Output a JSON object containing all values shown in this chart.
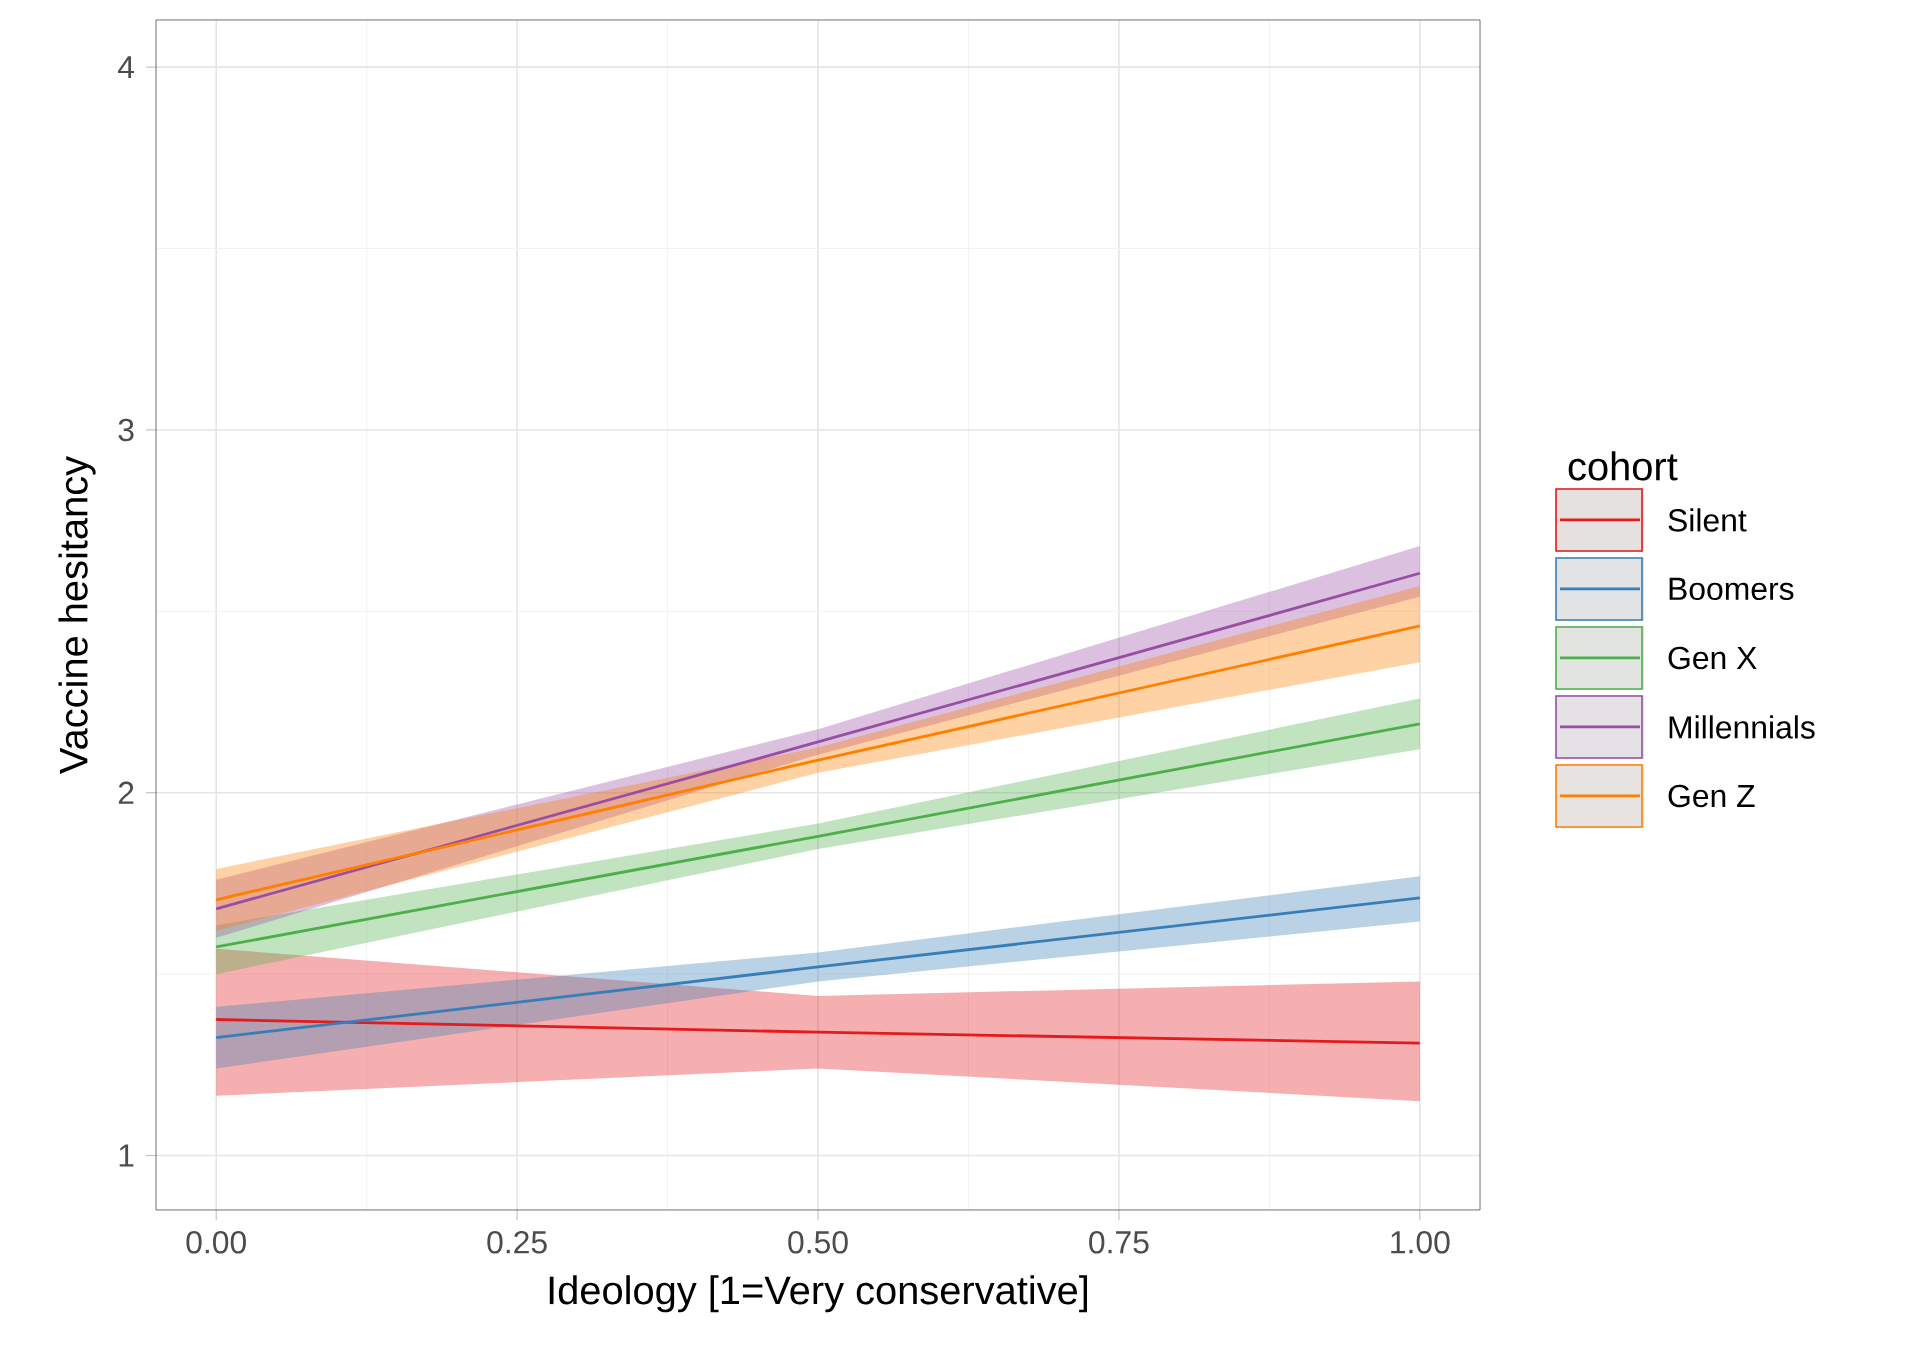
{
  "chart_data": {
    "type": "line",
    "xlabel": "Ideology [1=Very conservative]",
    "ylabel": "Vaccine hesitancy",
    "legend_title": "cohort",
    "legend": "right",
    "grid": true,
    "xlim": [
      -0.05,
      1.05
    ],
    "ylim": [
      0.85,
      4.13
    ],
    "xticks": [
      {
        "value": 0,
        "label": "0.00"
      },
      {
        "value": 0.25,
        "label": "0.25"
      },
      {
        "value": 0.5,
        "label": "0.50"
      },
      {
        "value": 0.75,
        "label": "0.75"
      },
      {
        "value": 1,
        "label": "1.00"
      }
    ],
    "yticks": [
      1,
      2,
      3,
      4
    ],
    "x": [
      0,
      0.5,
      1
    ],
    "series": [
      {
        "name": "Silent",
        "color": "#e41a1c",
        "values": [
          1.375,
          1.34,
          1.31
        ],
        "lower": [
          1.165,
          1.24,
          1.15
        ],
        "upper": [
          1.57,
          1.44,
          1.48
        ]
      },
      {
        "name": "Boomers",
        "color": "#377eb8",
        "values": [
          1.325,
          1.52,
          1.71
        ],
        "lower": [
          1.24,
          1.48,
          1.645
        ],
        "upper": [
          1.41,
          1.56,
          1.77
        ]
      },
      {
        "name": "Gen X",
        "color": "#4daf4a",
        "values": [
          1.575,
          1.88,
          2.19
        ],
        "lower": [
          1.5,
          1.845,
          2.12
        ],
        "upper": [
          1.635,
          1.915,
          2.26
        ]
      },
      {
        "name": "Millennials",
        "color": "#984ea3",
        "values": [
          1.68,
          2.14,
          2.605
        ],
        "lower": [
          1.6,
          2.105,
          2.54
        ],
        "upper": [
          1.76,
          2.175,
          2.68
        ]
      },
      {
        "name": "Gen Z",
        "color": "#ff7f00",
        "values": [
          1.705,
          2.09,
          2.46
        ],
        "lower": [
          1.62,
          2.055,
          2.36
        ],
        "upper": [
          1.79,
          2.125,
          2.57
        ]
      }
    ]
  }
}
